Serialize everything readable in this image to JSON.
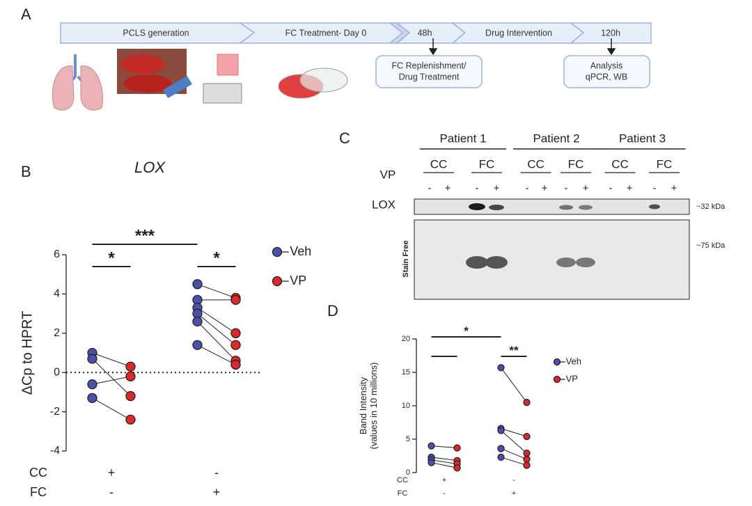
{
  "panel_letters": [
    "A",
    "B",
    "C",
    "D"
  ],
  "panel_a": {
    "stages": [
      "PCLS generation",
      "FC Treatment- Day 0",
      "48h",
      "Drug Intervention",
      "120h"
    ],
    "boxes": [
      [
        "FC Replenishment/",
        "Drug Treatment"
      ],
      [
        "Analysis",
        "qPCR, WB"
      ]
    ]
  },
  "panel_c": {
    "patients": [
      "Patient 1",
      "Patient 2",
      "Patient 3"
    ],
    "conditions": [
      "CC",
      "FC",
      "CC",
      "FC",
      "CC",
      "FC"
    ],
    "treatment_label": "VP",
    "lane_signs": [
      "-",
      "+",
      "-",
      "+",
      "-",
      "+",
      "-",
      "+",
      "-",
      "+",
      "-",
      "+"
    ],
    "target": "LOX",
    "loading": "Stain Free",
    "sizes": [
      "~32 kDa",
      "~75 kDa"
    ]
  },
  "chart_data": [
    {
      "type": "paired-dot",
      "title": "LOX",
      "ylabel": "ΔCp to HPRT",
      "ylim": [
        -4,
        6
      ],
      "yticks": [
        -4,
        -2,
        0,
        2,
        4,
        6
      ],
      "reference_line": 0,
      "rows": [
        {
          "name": "CC",
          "labels": [
            "+",
            "-"
          ]
        },
        {
          "name": "FC",
          "labels": [
            "-",
            "+"
          ]
        }
      ],
      "series": [
        {
          "name": "Veh",
          "color": "#4b50ad",
          "values": [
            [
              1.0,
              0.7,
              -0.6,
              -1.3
            ],
            [
              4.5,
              3.7,
              3.3,
              3.0,
              2.6,
              1.4
            ]
          ]
        },
        {
          "name": "VP",
          "color": "#e0282a",
          "values": [
            [
              0.3,
              -1.2,
              -0.2,
              -2.4
            ],
            [
              3.8,
              3.7,
              2.0,
              1.4,
              0.6,
              0.4
            ]
          ]
        }
      ],
      "significance": [
        "*",
        "***",
        "*"
      ]
    },
    {
      "type": "paired-dot",
      "ylabel": [
        "Band Intensity",
        "(values in 10 millions)"
      ],
      "ylim": [
        0,
        20
      ],
      "yticks": [
        0,
        5,
        10,
        15,
        20
      ],
      "rows": [
        {
          "name": "CC",
          "labels": [
            "+",
            "-"
          ]
        },
        {
          "name": "FC",
          "labels": [
            "-",
            "+"
          ]
        }
      ],
      "series": [
        {
          "name": "Veh",
          "color": "#4b50ad",
          "values": [
            [
              4.0,
              2.3,
              1.9,
              1.5
            ],
            [
              15.7,
              6.6,
              6.3,
              3.6,
              2.3
            ]
          ]
        },
        {
          "name": "VP",
          "color": "#e0282a",
          "values": [
            [
              3.7,
              1.8,
              1.3,
              0.7
            ],
            [
              10.5,
              5.4,
              2.9,
              2.0,
              1.1
            ]
          ]
        }
      ],
      "significance": [
        "*",
        "**"
      ]
    }
  ]
}
